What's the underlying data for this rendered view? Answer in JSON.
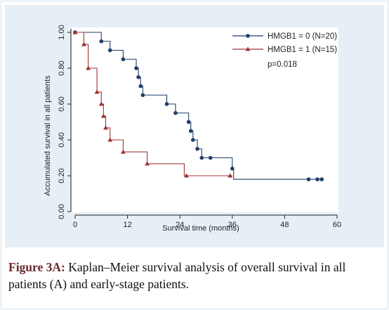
{
  "chart_data": {
    "type": "line",
    "subtype": "kaplan-meier step",
    "xlabel": "Survival time (months)",
    "ylabel": "Accumulated survival in all patients",
    "xlim": [
      0,
      60
    ],
    "ylim": [
      0,
      1
    ],
    "xticks": [
      0,
      12,
      24,
      36,
      48,
      60
    ],
    "xtick_labels": [
      "0",
      "12",
      "24",
      "36",
      "48",
      "60"
    ],
    "yticks": [
      0,
      0.2,
      0.4,
      0.6,
      0.8,
      1.0
    ],
    "ytick_labels": [
      "0.00",
      "0.20",
      "0.40",
      "0.60",
      "0.80",
      "1.00"
    ],
    "grid": false,
    "legend_position": "top-right",
    "annotation": "p=0.018",
    "series": [
      {
        "name": "HMGB1 = 0 (N=20)",
        "color": "#1f3f66",
        "marker": "circle",
        "steps": [
          [
            0,
            1.0
          ],
          [
            6,
            0.95
          ],
          [
            8,
            0.9
          ],
          [
            11,
            0.85
          ],
          [
            14,
            0.8
          ],
          [
            14.5,
            0.75
          ],
          [
            15,
            0.7
          ],
          [
            15.5,
            0.65
          ],
          [
            21,
            0.6
          ],
          [
            23,
            0.55
          ],
          [
            26,
            0.5
          ],
          [
            26.5,
            0.45
          ],
          [
            27,
            0.4
          ],
          [
            28,
            0.35
          ],
          [
            29,
            0.3
          ],
          [
            36,
            0.24
          ],
          [
            36.3,
            0.18
          ]
        ],
        "censored": [
          [
            0,
            1.0
          ],
          [
            6,
            0.95
          ],
          [
            8,
            0.9
          ],
          [
            11,
            0.85
          ],
          [
            14,
            0.8
          ],
          [
            14.5,
            0.75
          ],
          [
            15,
            0.7
          ],
          [
            15.5,
            0.65
          ],
          [
            21,
            0.6
          ],
          [
            23,
            0.55
          ],
          [
            26,
            0.5
          ],
          [
            26.5,
            0.45
          ],
          [
            27,
            0.4
          ],
          [
            28,
            0.35
          ],
          [
            29,
            0.3
          ],
          [
            31,
            0.3
          ],
          [
            36,
            0.24
          ],
          [
            53.5,
            0.18
          ],
          [
            55.5,
            0.18
          ],
          [
            56.5,
            0.18
          ]
        ]
      },
      {
        "name": "HMGB1 = 1 (N=15)",
        "color": "#a03434",
        "marker": "triangle",
        "steps": [
          [
            0,
            1.0
          ],
          [
            2,
            0.933
          ],
          [
            3,
            0.8
          ],
          [
            5,
            0.667
          ],
          [
            6,
            0.6
          ],
          [
            6.5,
            0.533
          ],
          [
            7,
            0.467
          ],
          [
            8,
            0.4
          ],
          [
            11,
            0.333
          ],
          [
            16.5,
            0.267
          ],
          [
            25,
            0.2
          ]
        ],
        "censored": [
          [
            0,
            1.0
          ],
          [
            2,
            0.933
          ],
          [
            3,
            0.8
          ],
          [
            5,
            0.667
          ],
          [
            6,
            0.6
          ],
          [
            6.5,
            0.533
          ],
          [
            7,
            0.467
          ],
          [
            8,
            0.4
          ],
          [
            11,
            0.333
          ],
          [
            16.5,
            0.267
          ],
          [
            25.5,
            0.2
          ],
          [
            35.5,
            0.2
          ]
        ],
        "end_x": 36
      }
    ]
  },
  "caption": {
    "lead": "Figure 3A:",
    "text": " Kaplan–Meier survival analysis of overall survival in all patients (A) and early-stage patients."
  }
}
